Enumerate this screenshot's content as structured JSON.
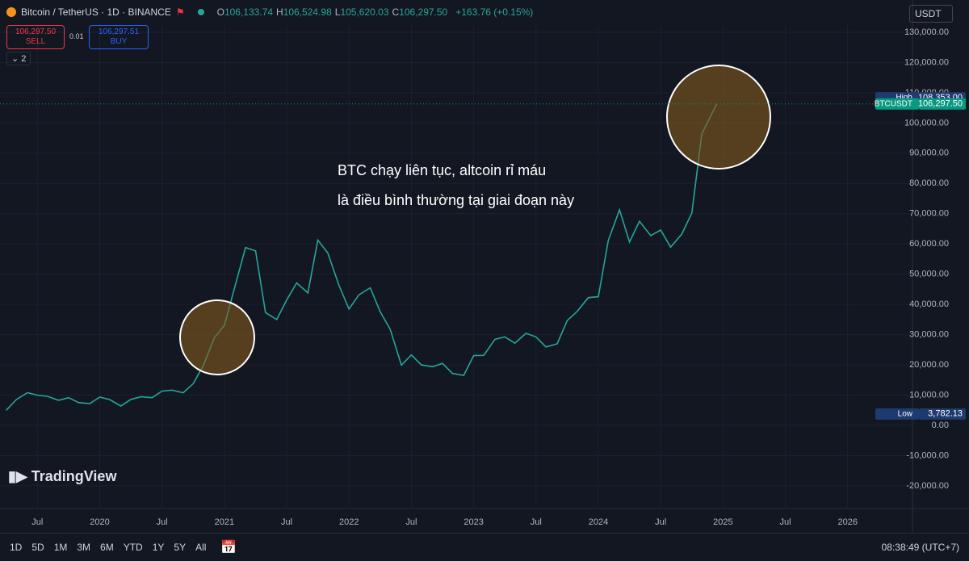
{
  "header": {
    "symbol": "Bitcoin / TetherUS · 1D · BINANCE",
    "ohlc": [
      {
        "key": "O",
        "value": "106,133.74"
      },
      {
        "key": "H",
        "value": "106,524.98"
      },
      {
        "key": "L",
        "value": "105,620.03"
      },
      {
        "key": "C",
        "value": "106,297.50"
      }
    ],
    "change": "+163.76 (+0.15%)",
    "sell": {
      "price": "106,297.50",
      "label": "SELL"
    },
    "spread": "0.01",
    "buy": {
      "price": "106,297.51",
      "label": "BUY"
    },
    "indicators": "2",
    "currency": "USDT",
    "logo": "TradingView"
  },
  "toolbar": {
    "ranges": [
      "1D",
      "5D",
      "1M",
      "3M",
      "6M",
      "YTD",
      "1Y",
      "5Y",
      "All"
    ],
    "clock": "08:38:49 (UTC+7)"
  },
  "chart_data": {
    "type": "line",
    "annotations": [
      "BTC chạy liên tục, altcoin rỉ máu",
      "là điều bình thường tại giai đoạn này"
    ],
    "x": [
      2019.25,
      2019.33,
      2019.42,
      2019.5,
      2019.58,
      2019.67,
      2019.75,
      2019.83,
      2019.92,
      2020.0,
      2020.08,
      2020.17,
      2020.25,
      2020.33,
      2020.42,
      2020.5,
      2020.58,
      2020.67,
      2020.75,
      2020.83,
      2020.92,
      2021.0,
      2021.08,
      2021.17,
      2021.25,
      2021.33,
      2021.42,
      2021.5,
      2021.58,
      2021.67,
      2021.75,
      2021.83,
      2021.92,
      2022.0,
      2022.08,
      2022.17,
      2022.25,
      2022.33,
      2022.42,
      2022.5,
      2022.58,
      2022.67,
      2022.75,
      2022.83,
      2022.92,
      2023.0,
      2023.08,
      2023.17,
      2023.25,
      2023.33,
      2023.42,
      2023.5,
      2023.58,
      2023.67,
      2023.75,
      2023.83,
      2023.92,
      2024.0,
      2024.08,
      2024.17,
      2024.25,
      2024.33,
      2024.42,
      2024.5,
      2024.58,
      2024.67,
      2024.75,
      2024.83,
      2024.95
    ],
    "series": [
      {
        "name": "BTCUSDT",
        "color": "#26a69a",
        "values": [
          5000,
          8500,
          10800,
          10000,
          9600,
          8300,
          9150,
          7550,
          7200,
          9350,
          8550,
          6400,
          8600,
          9450,
          9150,
          11350,
          11650,
          10780,
          13800,
          19700,
          29000,
          33100,
          45200,
          58800,
          57700,
          37300,
          35000,
          41500,
          47100,
          43800,
          61300,
          57000,
          46200,
          38500,
          43200,
          45500,
          37600,
          31800,
          19900,
          23300,
          20000,
          19400,
          20500,
          17150,
          16550,
          23100,
          23150,
          28450,
          29250,
          27200,
          30450,
          29250,
          25950,
          26950,
          34650,
          37700,
          42250,
          42550,
          61150,
          71300,
          60650,
          67500,
          62750,
          64600,
          58950,
          63300,
          70250,
          96400,
          106297.5
        ]
      }
    ],
    "xlim": [
      2019.2,
      2026.52
    ],
    "xticks": [
      {
        "value": 2019.5,
        "label": "Jul"
      },
      2020,
      {
        "value": 2020.5,
        "label": "Jul"
      },
      2021,
      {
        "value": 2021.5,
        "label": "Jul"
      },
      2022,
      {
        "value": 2022.5,
        "label": "Jul"
      },
      2023,
      {
        "value": 2023.5,
        "label": "Jul"
      },
      2024,
      {
        "value": 2024.5,
        "label": "Jul"
      },
      2025,
      {
        "value": 2025.5,
        "label": "Jul"
      },
      2026
    ],
    "ylim": [
      -22160,
      132670
    ],
    "yticks": [
      {
        "value": 130000,
        "label": "130,000.00"
      },
      {
        "value": 120000,
        "label": "120,000.00"
      },
      {
        "value": 110000,
        "label": "110,000.00"
      },
      {
        "value": 100000,
        "label": "100,000.00"
      },
      {
        "value": 90000,
        "label": "90,000.00"
      },
      {
        "value": 80000,
        "label": "80,000.00"
      },
      {
        "value": 70000,
        "label": "70,000.00"
      },
      {
        "value": 60000,
        "label": "60,000.00"
      },
      {
        "value": 50000,
        "label": "50,000.00"
      },
      {
        "value": 40000,
        "label": "40,000.00"
      },
      {
        "value": 30000,
        "label": "30,000.00"
      },
      {
        "value": 20000,
        "label": "20,000.00"
      },
      {
        "value": 10000,
        "label": "10,000.00"
      },
      {
        "value": 0,
        "label": "0.00"
      },
      {
        "value": -10000,
        "label": "-10,000.00"
      },
      {
        "value": -20000,
        "label": "-20,000.00"
      }
    ],
    "price_lines": [
      {
        "name": "High",
        "color": "#1e3a6e",
        "price": {
          "value": 108353,
          "label": "108,353.00"
        }
      },
      {
        "name": "BTCUSDT",
        "color": "#089981",
        "price": {
          "value": 106297.5,
          "label": "106,297.50"
        }
      },
      {
        "name": "Low",
        "color": "#1e3a6e",
        "price": {
          "value": 3782.13,
          "label": "3,782.13"
        }
      }
    ]
  }
}
